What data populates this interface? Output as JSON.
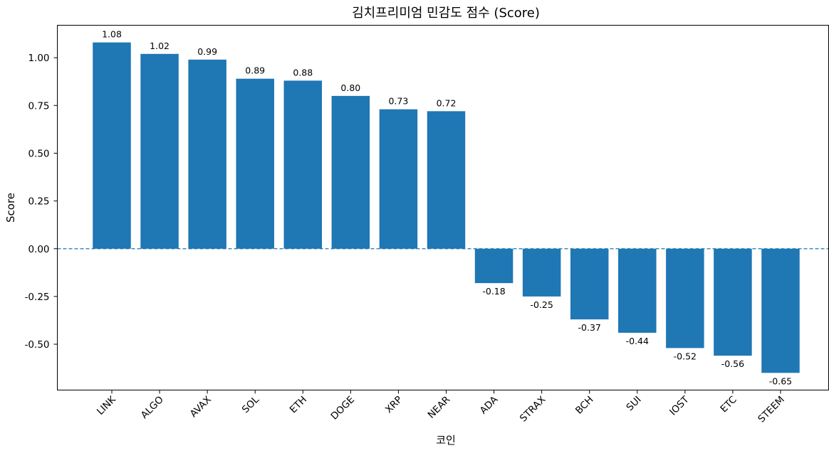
{
  "chart_data": {
    "type": "bar",
    "title": "김치프리미엄 민감도 점수 (Score)",
    "xlabel": "코인",
    "ylabel": "Score",
    "categories": [
      "LINK",
      "ALGO",
      "AVAX",
      "SOL",
      "ETH",
      "DOGE",
      "XRP",
      "NEAR",
      "ADA",
      "STRAX",
      "BCH",
      "SUI",
      "IOST",
      "ETC",
      "STEEM"
    ],
    "values": [
      1.08,
      1.02,
      0.99,
      0.89,
      0.88,
      0.8,
      0.73,
      0.72,
      -0.18,
      -0.25,
      -0.37,
      -0.44,
      -0.52,
      -0.56,
      -0.65
    ],
    "value_labels": [
      "1.08",
      "1.02",
      "0.99",
      "0.89",
      "0.88",
      "0.80",
      "0.73",
      "0.72",
      "-0.18",
      "-0.25",
      "-0.37",
      "-0.44",
      "-0.52",
      "-0.56",
      "-0.65"
    ],
    "yticks": [
      1.0,
      0.75,
      0.5,
      0.25,
      0.0,
      -0.25,
      -0.5
    ],
    "ytick_labels": [
      "1.00",
      "0.75",
      "0.50",
      "0.25",
      "0.00",
      "-0.25",
      "-0.50"
    ],
    "ylim": [
      -0.74,
      1.17
    ],
    "reference_line": 0,
    "grid": false,
    "bar_color": "#1f77b4",
    "reference_line_color": "#1f77b4"
  }
}
